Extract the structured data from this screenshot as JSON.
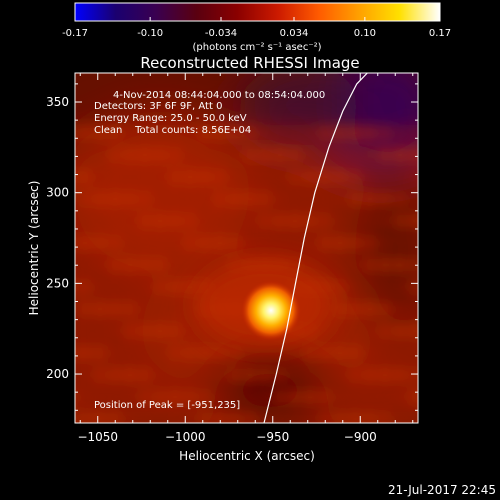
{
  "colorbar": {
    "ticks": [
      "-0.17",
      "-0.10",
      "-0.034",
      "0.034",
      "0.10",
      "0.17"
    ],
    "tick_values": [
      -0.17,
      -0.1,
      -0.034,
      0.034,
      0.1,
      0.17
    ],
    "range": [
      -0.17,
      0.17
    ],
    "units_label": "(photons cm⁻² s⁻¹ asec⁻²)",
    "colormap": [
      "#0000ff",
      "#1a0070",
      "#3a0050",
      "#5a0010",
      "#8a0000",
      "#cc1a00",
      "#ff5a00",
      "#ffa000",
      "#ffe000",
      "#ffffff"
    ]
  },
  "chart_data": {
    "type": "heatmap",
    "title": "Reconstructed RHESSI Image",
    "xlabel": "Heliocentric X (arcsec)",
    "ylabel": "Heliocentric Y (arcsec)",
    "xlim": [
      -1063,
      -867
    ],
    "ylim": [
      173,
      366
    ],
    "xticks": [
      -1050,
      -1000,
      -950,
      -900
    ],
    "xtick_labels": [
      "−1050",
      "−1000",
      "−950",
      "−900"
    ],
    "yticks": [
      200,
      250,
      300,
      350
    ],
    "ytick_labels": [
      "200",
      "250",
      "300",
      "350"
    ],
    "peak": {
      "x": -951,
      "y": 235,
      "value": 0.17
    },
    "limb_curve": {
      "x": [
        -955,
        -948,
        -942,
        -937,
        -932,
        -926,
        -918,
        -910,
        -902,
        -896
      ],
      "y": [
        173,
        200,
        225,
        250,
        275,
        300,
        325,
        345,
        360,
        366
      ]
    },
    "info": {
      "time_range": "4-Nov-2014 08:44:04.000 to 08:54:04.000",
      "detectors": "Detectors: 3F 6F 9F, Att 0",
      "energy_range": "Energy Range: 25.0 - 50.0 keV",
      "clean": "Clean    Total counts: 8.56E+04",
      "peak_position": "Position of Peak = [-951,235]"
    }
  },
  "timestamp": "21-Jul-2017 22:45"
}
